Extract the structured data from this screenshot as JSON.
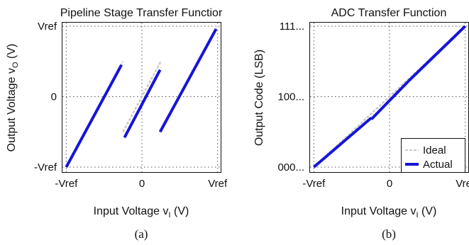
{
  "colors": {
    "actual": "#1515d8",
    "ideal": "#c9c9c9",
    "axis": "#111111",
    "grid": "#555555"
  },
  "chart_data": [
    {
      "type": "line",
      "title": "Pipeline Stage Transfer Functior",
      "panel_label": "(a)",
      "xlabel": "Input Voltage v",
      "xlabel_sub": "I",
      "xlabel_suffix": " (V)",
      "ylabel": "Output Voltage v",
      "ylabel_sub": "O",
      "ylabel_suffix": " (V)",
      "xlim": [
        -1.05,
        1.05
      ],
      "ylim": [
        -1.08,
        1.05
      ],
      "xticks": [
        {
          "value": -1,
          "label": "-Vref"
        },
        {
          "value": 0,
          "label": "0"
        },
        {
          "value": 1,
          "label": "Vref"
        }
      ],
      "yticks": [
        {
          "value": -1,
          "label": "-Vref"
        },
        {
          "value": 0,
          "label": "0"
        },
        {
          "value": 1,
          "label": "Vref"
        }
      ],
      "grid": true,
      "series": [
        {
          "role": "ideal",
          "segments": [
            [
              [
                -1.0,
                -1.0
              ],
              [
                -0.25,
                0.5
              ]
            ],
            [
              [
                -0.25,
                -0.5
              ],
              [
                0.25,
                0.5
              ]
            ],
            [
              [
                0.25,
                -0.5
              ],
              [
                1.0,
                1.0
              ]
            ]
          ]
        },
        {
          "role": "actual",
          "segments": [
            [
              [
                -1.0,
                -1.0
              ],
              [
                -0.27,
                0.45
              ]
            ],
            [
              [
                -0.23,
                -0.58
              ],
              [
                0.24,
                0.38
              ]
            ],
            [
              [
                0.24,
                -0.5
              ],
              [
                0.98,
                0.96
              ]
            ]
          ]
        }
      ]
    },
    {
      "type": "line",
      "title": "ADC Transfer Function",
      "panel_label": "(b)",
      "xlabel": "Input Voltage v",
      "xlabel_sub": "I",
      "xlabel_suffix": " (V)",
      "ylabel": "Output Code (LSB)",
      "xlim": [
        -1.05,
        1.05
      ],
      "ylim": [
        -0.08,
        2.05
      ],
      "xticks": [
        {
          "value": -1,
          "label": "-Vref"
        },
        {
          "value": 0,
          "label": "0"
        },
        {
          "value": 1,
          "label": "Vref"
        }
      ],
      "yticks": [
        {
          "value": 0,
          "label": "000..."
        },
        {
          "value": 1,
          "label": "100..."
        },
        {
          "value": 2,
          "label": "111..."
        }
      ],
      "grid": true,
      "legend": {
        "position": "bottom-right",
        "entries": [
          "Ideal",
          "Actual"
        ]
      },
      "series": [
        {
          "name": "Ideal",
          "role": "ideal",
          "segments": [
            [
              [
                -1.0,
                0.0
              ],
              [
                1.0,
                2.0
              ]
            ]
          ]
        },
        {
          "name": "Actual",
          "role": "actual",
          "segments": [
            [
              [
                -1.0,
                0.0
              ],
              [
                -0.24,
                0.7
              ]
            ],
            [
              [
                -0.24,
                0.68
              ],
              [
                0.25,
                1.22
              ]
            ],
            [
              [
                0.25,
                1.22
              ],
              [
                1.0,
                2.0
              ]
            ]
          ]
        }
      ]
    }
  ]
}
